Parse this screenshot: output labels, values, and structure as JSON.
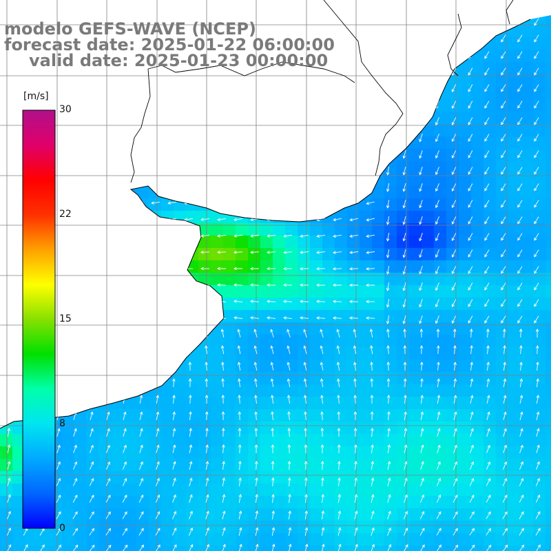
{
  "titles": {
    "model": "modelo GEFS-WAVE (NCEP)",
    "forecast": "forecast date: 2025-01-22 06:00:00",
    "valid": "valid date: 2025-01-23 00:00:00"
  },
  "colorbar": {
    "unit": "[m/s]",
    "min": 0,
    "max": 30,
    "tick_labels": [
      "30",
      "22",
      "15",
      "8",
      "0"
    ],
    "tick_values": [
      30,
      22,
      15,
      8,
      0
    ],
    "colors": [
      "#0000ff",
      "#0066ff",
      "#00aaff",
      "#00e5f0",
      "#00ffaa",
      "#00e000",
      "#88e000",
      "#ffff00",
      "#ffa000",
      "#ff3000",
      "#ff0000",
      "#e0006a",
      "#b0108a"
    ]
  },
  "map": {
    "field": "wind speed and direction",
    "land_color": "#ffffff",
    "grid_color": "#808080",
    "coast_color": "#000000",
    "arrow_color": "#ffffff"
  }
}
